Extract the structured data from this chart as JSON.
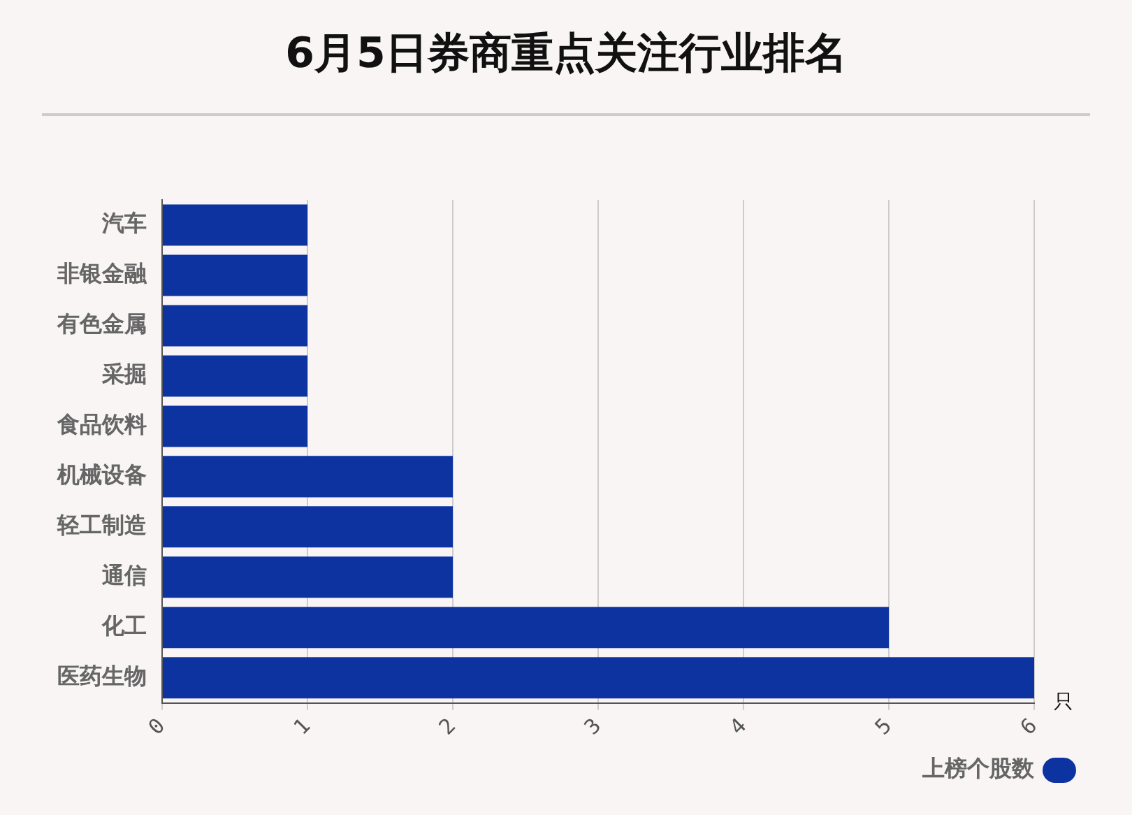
{
  "chart_data": {
    "type": "bar",
    "title": "6月5日券商重点关注行业排名",
    "orientation": "horizontal",
    "xlabel": "只",
    "categories": [
      "汽车",
      "非银金融",
      "有色金属",
      "采掘",
      "食品饮料",
      "机械设备",
      "轻工制造",
      "通信",
      "化工",
      "医药生物"
    ],
    "series": [
      {
        "name": "上榜个股数",
        "color": "#0c33a0",
        "values": [
          1,
          1,
          1,
          1,
          1,
          2,
          2,
          2,
          5,
          6
        ]
      }
    ],
    "xlim": [
      0,
      6
    ],
    "xticks": [
      0,
      1,
      2,
      3,
      4,
      5,
      6
    ],
    "grid": "x",
    "legend": "bottom right"
  }
}
